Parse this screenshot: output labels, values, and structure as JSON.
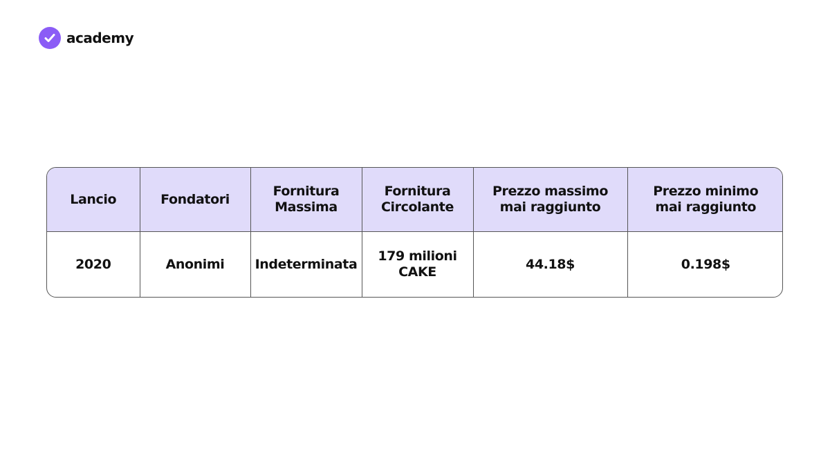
{
  "logo": {
    "text": "academy"
  },
  "table": {
    "header": [
      [
        "Lancio"
      ],
      [
        "Fondatori"
      ],
      [
        "Fornitura",
        "Massima"
      ],
      [
        "Fornitura",
        "Circolante"
      ],
      [
        "Prezzo massimo",
        "mai raggiunto"
      ],
      [
        "Prezzo minimo",
        "mai raggiunto"
      ]
    ],
    "rows": [
      [
        [
          "2020"
        ],
        [
          "Anonimi"
        ],
        [
          "Indeterminata"
        ],
        [
          "179 milioni",
          "CAKE"
        ],
        [
          "44.18$"
        ],
        [
          "0.198$"
        ]
      ]
    ]
  }
}
